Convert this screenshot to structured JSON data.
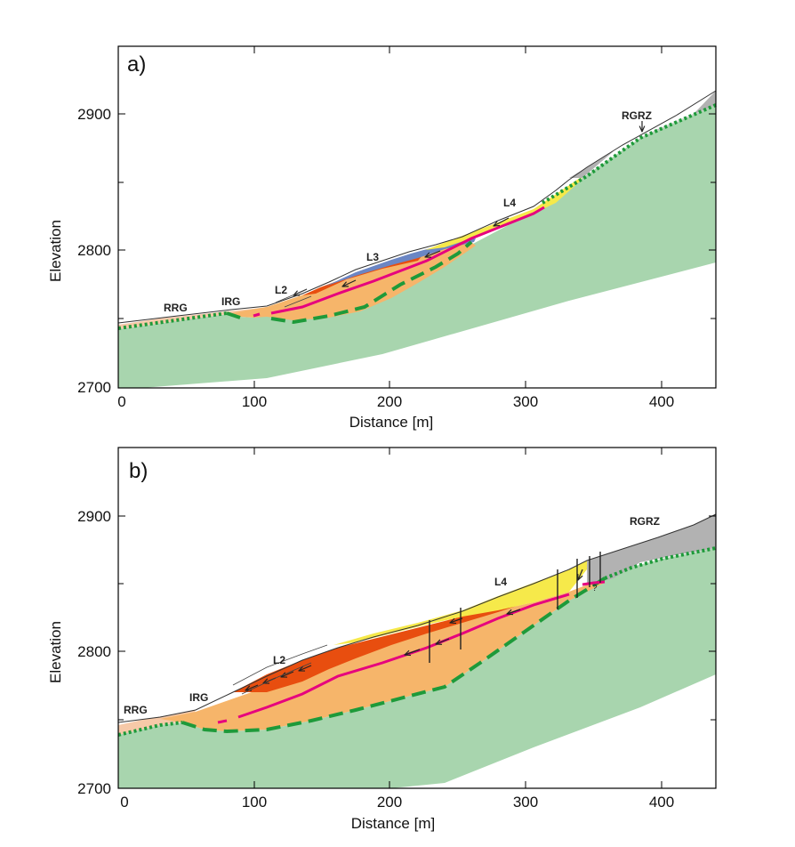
{
  "colors": {
    "bedrock": "#a8d5ae",
    "talus": "#f6b56a",
    "l2": "#e84e0f",
    "l3": "#6b86c4",
    "l4": "#f6e94a",
    "rgrz": "#b2b2b2",
    "rrg_fill": "#f6c9a8",
    "shear_line": "#e6007e",
    "bedrock_line": "#1e9a3a"
  },
  "panels": [
    {
      "label": "a)",
      "xlabel": "Distance [m]",
      "ylabel": "Elevation",
      "x_ticks": [
        "0",
        "100",
        "200",
        "300",
        "400"
      ],
      "y_ticks": [
        "2700",
        "2800",
        "2900"
      ],
      "units": {
        "rrg": "RRG",
        "irg": "IRG",
        "l2": "L2",
        "l3": "L3",
        "l4": "L4",
        "rgrz": "RGRZ"
      }
    },
    {
      "label": "b)",
      "xlabel": "Distance [m]",
      "ylabel": "Elevation",
      "x_ticks": [
        "0",
        "100",
        "200",
        "300",
        "400"
      ],
      "y_ticks": [
        "2700",
        "2800",
        "2900"
      ],
      "units": {
        "rrg": "RRG",
        "irg": "IRG",
        "l2": "L2",
        "l4": "L4",
        "rgrz": "RGRZ",
        "question": "?"
      }
    }
  ]
}
